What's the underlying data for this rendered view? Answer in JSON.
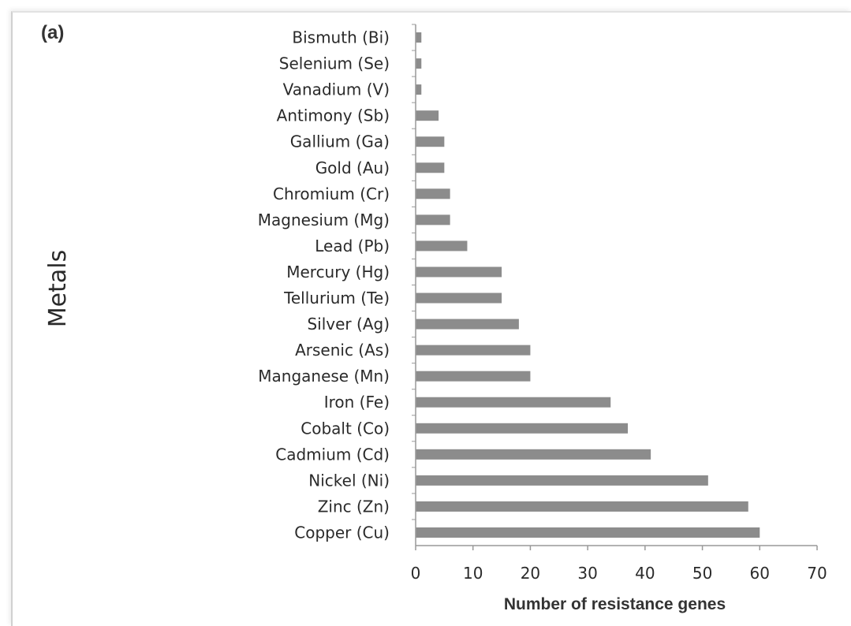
{
  "panel_label": "(a)",
  "chart_data": {
    "type": "bar",
    "orientation": "horizontal",
    "categories": [
      "Bismuth (Bi)",
      "Selenium (Se)",
      "Vanadium (V)",
      "Antimony (Sb)",
      "Gallium (Ga)",
      "Gold (Au)",
      "Chromium (Cr)",
      "Magnesium (Mg)",
      "Lead (Pb)",
      "Mercury (Hg)",
      "Tellurium (Te)",
      "Silver (Ag)",
      "Arsenic (As)",
      "Manganese (Mn)",
      "Iron (Fe)",
      "Cobalt (Co)",
      "Cadmium (Cd)",
      "Nickel (Ni)",
      "Zinc (Zn)",
      "Copper (Cu)"
    ],
    "values": [
      1,
      1,
      1,
      4,
      5,
      5,
      6,
      6,
      9,
      15,
      15,
      18,
      20,
      20,
      34,
      37,
      41,
      51,
      58,
      60
    ],
    "xlabel": "Number of resistance genes",
    "ylabel": "Metals",
    "xlim": [
      0,
      70
    ],
    "xticks": [
      "0",
      "10",
      "20",
      "30",
      "40",
      "50",
      "60",
      "70"
    ],
    "grid": false,
    "bar_color": "#8c8c8c",
    "axis_color": "#999999"
  }
}
